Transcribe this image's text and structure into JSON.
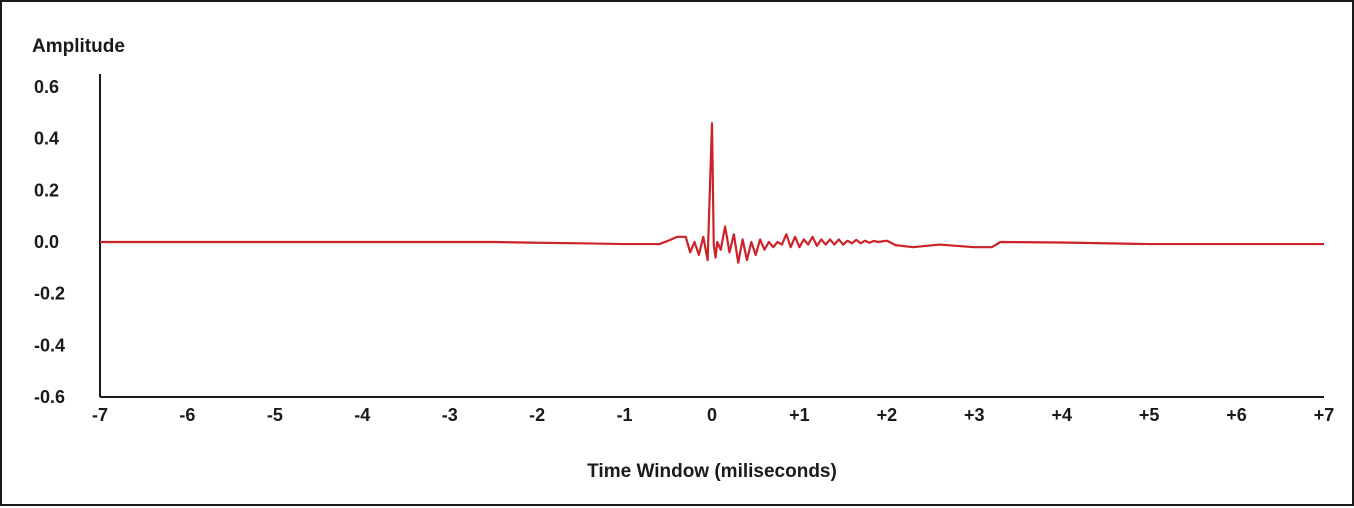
{
  "chart_data": {
    "type": "line",
    "title": "",
    "xlabel": "Time Window (miliseconds)",
    "ylabel": "Amplitude",
    "xlim": [
      -7,
      7
    ],
    "ylim": [
      -0.6,
      0.6
    ],
    "grid": false,
    "x_ticks": [
      {
        "value": -7,
        "label": "-7"
      },
      {
        "value": -6,
        "label": "-6"
      },
      {
        "value": -5,
        "label": "-5"
      },
      {
        "value": -4,
        "label": "-4"
      },
      {
        "value": -3,
        "label": "-3"
      },
      {
        "value": -2,
        "label": "-2"
      },
      {
        "value": -1,
        "label": "-1"
      },
      {
        "value": 0,
        "label": "0"
      },
      {
        "value": 1,
        "label": "+1"
      },
      {
        "value": 2,
        "label": "+2"
      },
      {
        "value": 3,
        "label": "+3"
      },
      {
        "value": 4,
        "label": "+4"
      },
      {
        "value": 5,
        "label": "+5"
      },
      {
        "value": 6,
        "label": "+6"
      },
      {
        "value": 7,
        "label": "+7"
      }
    ],
    "y_ticks": [
      {
        "value": 0.6,
        "label": "0.6"
      },
      {
        "value": 0.4,
        "label": "0.4"
      },
      {
        "value": 0.2,
        "label": "0.2"
      },
      {
        "value": 0.0,
        "label": "0.0"
      },
      {
        "value": -0.2,
        "label": "-0.2"
      },
      {
        "value": -0.4,
        "label": "-0.4"
      },
      {
        "value": -0.6,
        "label": "-0.6"
      }
    ],
    "series": [
      {
        "color": "#cc2229",
        "x": [
          -7.0,
          -5.0,
          -3.0,
          -2.5,
          -2.0,
          -1.5,
          -1.0,
          -0.6,
          -0.5,
          -0.4,
          -0.3,
          -0.25,
          -0.2,
          -0.15,
          -0.1,
          -0.05,
          0.0,
          0.02,
          0.04,
          0.06,
          0.1,
          0.15,
          0.2,
          0.25,
          0.3,
          0.35,
          0.4,
          0.45,
          0.5,
          0.55,
          0.6,
          0.65,
          0.7,
          0.75,
          0.8,
          0.85,
          0.9,
          0.95,
          1.0,
          1.05,
          1.1,
          1.15,
          1.2,
          1.25,
          1.3,
          1.35,
          1.4,
          1.45,
          1.5,
          1.55,
          1.6,
          1.65,
          1.7,
          1.75,
          1.8,
          1.85,
          1.9,
          2.0,
          2.1,
          2.3,
          2.6,
          3.0,
          3.2,
          3.3,
          4.0,
          5.0,
          6.0,
          7.0
        ],
        "y": [
          0.0,
          0.0,
          0.0,
          0.0,
          -0.003,
          -0.005,
          -0.008,
          -0.008,
          0.005,
          0.02,
          0.02,
          -0.04,
          0.0,
          -0.05,
          0.02,
          -0.07,
          0.46,
          -0.01,
          -0.06,
          0.0,
          -0.03,
          0.06,
          -0.04,
          0.03,
          -0.08,
          0.01,
          -0.07,
          0.0,
          -0.05,
          0.01,
          -0.03,
          0.0,
          -0.02,
          0.0,
          -0.01,
          0.03,
          -0.02,
          0.02,
          -0.02,
          0.01,
          -0.01,
          0.02,
          -0.015,
          0.01,
          -0.01,
          0.01,
          -0.01,
          0.01,
          -0.01,
          0.005,
          -0.005,
          0.008,
          -0.005,
          0.005,
          -0.003,
          0.004,
          0.0,
          0.005,
          -0.012,
          -0.02,
          -0.01,
          -0.02,
          -0.02,
          0.0,
          -0.002,
          -0.008,
          -0.008,
          -0.008
        ]
      }
    ]
  }
}
